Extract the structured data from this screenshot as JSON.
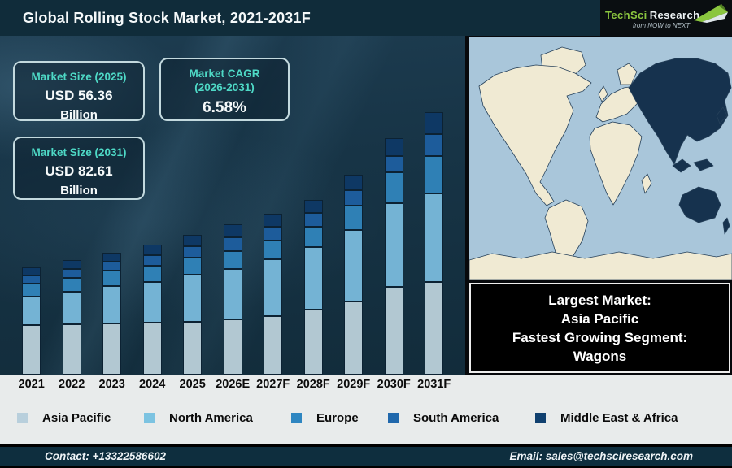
{
  "header": {
    "title": "Global Rolling Stock Market, 2021-2031F",
    "logo": {
      "brand_primary": "TechSci",
      "brand_secondary": "Research",
      "tagline": "from NOW to NEXT"
    }
  },
  "stats": {
    "market_size_2025": {
      "label": "Market Size (2025)",
      "value": "USD 56.36",
      "unit": "Billion"
    },
    "market_cagr": {
      "label_line1": "Market CAGR",
      "label_line2": "(2026-2031)",
      "value": "6.58%"
    },
    "market_size_2031": {
      "label": "Market Size (2031)",
      "value": "USD 82.61",
      "unit": "Billion"
    }
  },
  "map": {
    "highlight_region": "Asia Pacific",
    "ocean_color": "#a9c6da",
    "land_color": "#f0ead3",
    "highlight_color": "#16324e"
  },
  "callout": {
    "lines": [
      "Largest Market:",
      "Asia Pacific",
      "Fastest Growing Segment:",
      "Wagons"
    ]
  },
  "legend": [
    {
      "label": "Asia Pacific",
      "color": "#b8cfdc"
    },
    {
      "label": "North America",
      "color": "#7cc3e1"
    },
    {
      "label": "Europe",
      "color": "#2e86c1"
    },
    {
      "label": "South America",
      "color": "#2068ac"
    },
    {
      "label": "Middle East & Africa",
      "color": "#10406f"
    }
  ],
  "footer": {
    "contact": "Contact: +13322586602",
    "email": "Email: sales@techsciresearch.com"
  },
  "theme": {
    "accent_teal": "#4ed9c6",
    "title_bg": "#102c3a",
    "footer_bg": "#0e2e3e"
  },
  "chart_data": {
    "type": "bar",
    "stacked": true,
    "title": "Global Rolling Stock Market, 2021-2031F",
    "categories": [
      "2021",
      "2022",
      "2023",
      "2024",
      "2025",
      "2026E",
      "2027F",
      "2028F",
      "2029F",
      "2030F",
      "2031F"
    ],
    "series": [
      {
        "name": "Asia Pacific",
        "color": "#b2c8d2",
        "values": [
          61,
          62,
          63,
          64,
          65,
          68,
          72,
          80,
          90,
          108,
          114
        ]
      },
      {
        "name": "North America",
        "color": "#74b3d4",
        "values": [
          35,
          40,
          46,
          50,
          58,
          62,
          70,
          77,
          88,
          103,
          109
        ]
      },
      {
        "name": "Europe",
        "color": "#2f80b5",
        "values": [
          16,
          17,
          19,
          20,
          21,
          22,
          23,
          25,
          30,
          38,
          46
        ]
      },
      {
        "name": "South America",
        "color": "#1d5c9b",
        "values": [
          10,
          11,
          11,
          13,
          14,
          17,
          17,
          17,
          19,
          20,
          27
        ]
      },
      {
        "name": "Middle East & Africa",
        "color": "#0e3864",
        "values": [
          10,
          11,
          11,
          13,
          14,
          16,
          16,
          16,
          19,
          22,
          27
        ]
      }
    ],
    "units": "relative bar height in px (no value axis shown in source graphic)",
    "anchors": {
      "total_2025_usd_billion": 56.36,
      "total_2031_usd_billion": 82.61,
      "cagr_2026_2031_pct": 6.58
    },
    "legend_position": "bottom",
    "grid": false,
    "xlabel": "",
    "ylabel": ""
  }
}
